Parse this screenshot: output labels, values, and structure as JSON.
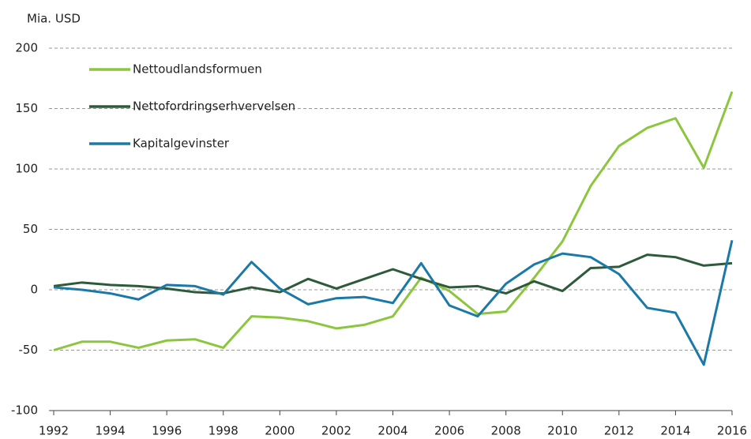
{
  "chart_data": {
    "type": "line",
    "y_label": "Mia. USD",
    "x": [
      1992,
      1993,
      1994,
      1995,
      1996,
      1997,
      1998,
      1999,
      2000,
      2001,
      2002,
      2003,
      2004,
      2005,
      2006,
      2007,
      2008,
      2009,
      2010,
      2011,
      2012,
      2013,
      2014,
      2015,
      2016
    ],
    "series": [
      {
        "name": "Nettoudlandsformuen",
        "color": "#8cc63e",
        "values": [
          -50,
          -43,
          -43,
          -48,
          -42,
          -41,
          -48,
          -22,
          -23,
          -26,
          -32,
          -29,
          -22,
          10,
          -1,
          -20,
          -18,
          10,
          40,
          86,
          119,
          134,
          142,
          101,
          164
        ]
      },
      {
        "name": "Nettofordringserhvervelsen",
        "color": "#2d5a3a",
        "values": [
          3,
          6,
          4,
          3,
          1,
          -2,
          -3,
          2,
          -2,
          9,
          1,
          9,
          17,
          9,
          2,
          3,
          -3,
          7,
          -1,
          18,
          19,
          29,
          27,
          20,
          22
        ]
      },
      {
        "name": "Kapitalgevinster",
        "color": "#1a79a6",
        "values": [
          2,
          0,
          -3,
          -8,
          4,
          3,
          -4,
          23,
          1,
          -12,
          -7,
          -6,
          -11,
          22,
          -13,
          -22,
          5,
          21,
          30,
          27,
          13,
          -15,
          -19,
          -62,
          41
        ]
      }
    ],
    "xlim": [
      1992,
      2016
    ],
    "xticks": [
      1992,
      1994,
      1996,
      1998,
      2000,
      2002,
      2004,
      2006,
      2008,
      2010,
      2012,
      2014,
      2016
    ],
    "ylim": [
      -100,
      200
    ],
    "yticks": [
      -100,
      -50,
      0,
      50,
      100,
      150,
      200
    ],
    "grid": true
  }
}
